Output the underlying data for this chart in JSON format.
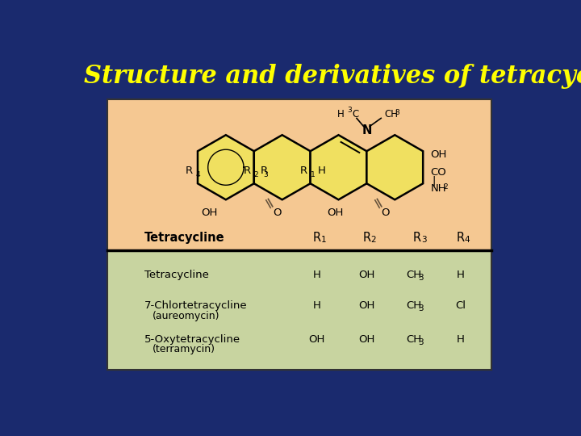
{
  "title": "Structure and derivatives of tetracycline",
  "title_color": "#FFFF00",
  "title_fontsize": 22,
  "bg_color": "#1a2a6e",
  "panel_top_color": "#F5C892",
  "panel_bottom_color": "#C8D4A0",
  "panel_border_color": "#333333",
  "table_header": [
    "Tetracycline",
    "R1",
    "R2",
    "R3",
    "R4"
  ],
  "table_rows": [
    [
      "Tetracycline",
      "H",
      "OH",
      "CH3",
      "H"
    ],
    [
      "7-Chlortetracycline\n(aureomycin)",
      "H",
      "OH",
      "CH3",
      "Cl"
    ],
    [
      "5-Oxytetracycline\n(terramycin)",
      "OH",
      "OH",
      "CH3",
      "H"
    ]
  ]
}
